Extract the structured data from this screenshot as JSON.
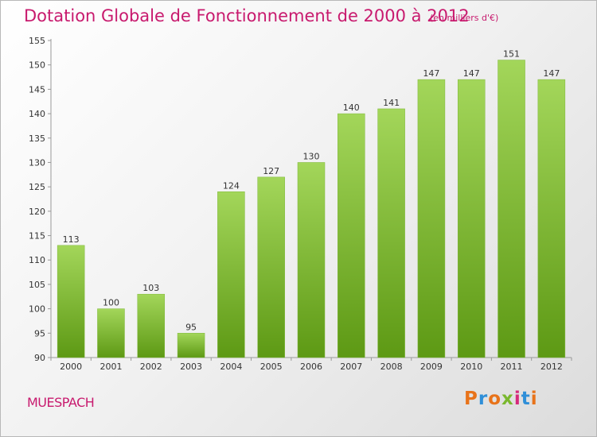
{
  "header": {
    "title": "Dotation Globale de Fonctionnement de 2000 à 2012",
    "unit": "(en milliers d'€)"
  },
  "footer": {
    "place": "MUESPACH",
    "logo": "Proxiti",
    "logo_colors": [
      "#e8731a",
      "#2f8fd8",
      "#e8731a",
      "#7ab82e",
      "#d62a7b",
      "#2f8fd8",
      "#e8731a"
    ]
  },
  "colors": {
    "bar_top": "#a3d65a",
    "bar_bottom": "#5d9914",
    "accent": "#c81a6e"
  },
  "chart_data": {
    "type": "bar",
    "title": "Dotation Globale de Fonctionnement de 2000 à 2012",
    "xlabel": "",
    "ylabel": "",
    "categories": [
      "2000",
      "2001",
      "2002",
      "2003",
      "2004",
      "2005",
      "2006",
      "2007",
      "2008",
      "2009",
      "2010",
      "2011",
      "2012"
    ],
    "values": [
      113,
      100,
      103,
      95,
      124,
      127,
      130,
      140,
      141,
      147,
      147,
      151,
      147
    ],
    "ylim": [
      90,
      155
    ],
    "yticks": [
      90,
      95,
      100,
      105,
      110,
      115,
      120,
      125,
      130,
      135,
      140,
      145,
      150,
      155
    ],
    "grid": false,
    "legend": "none"
  }
}
